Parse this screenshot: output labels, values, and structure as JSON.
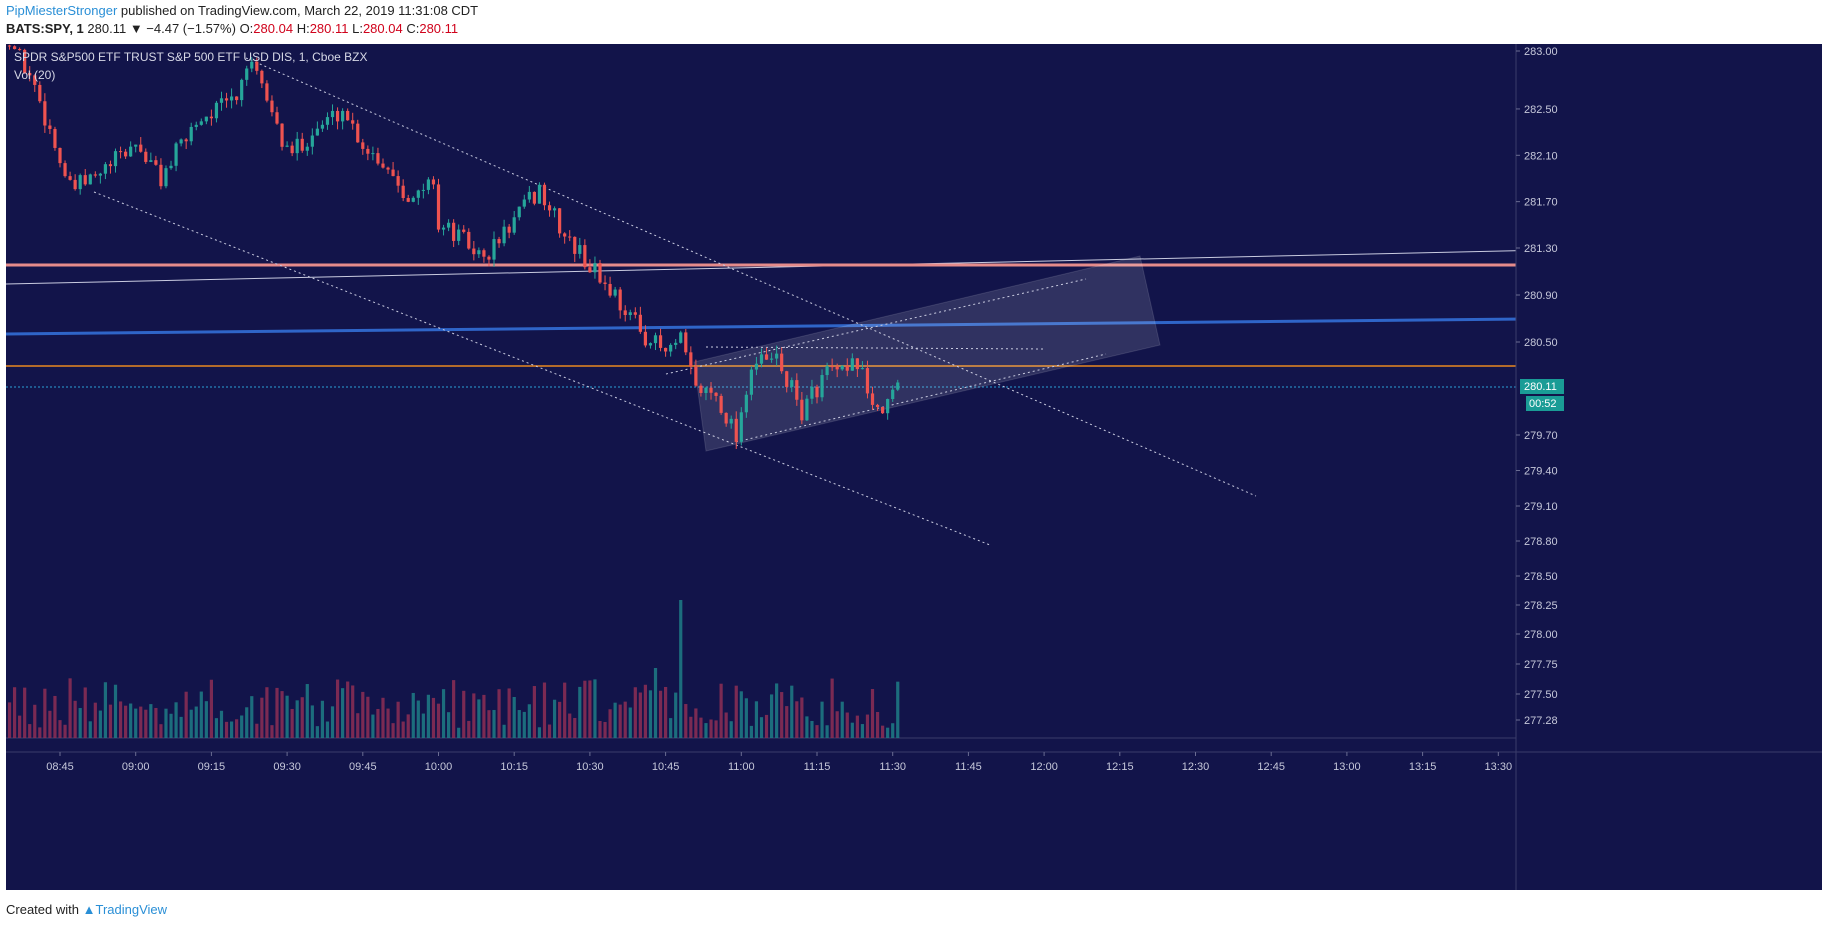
{
  "header": {
    "username": "PipMiesterStronger",
    "published_text": " published on TradingView.com, March 22, 2019 11:31:08 CDT",
    "symbol": "BATS:SPY, 1",
    "price": "280.11",
    "change": "▼ −4.47 (−1.57%)",
    "ohlc": [
      {
        "label": "O:",
        "value": "280.04"
      },
      {
        "label": "H:",
        "value": "280.11"
      },
      {
        "label": "L:",
        "value": "280.04"
      },
      {
        "label": "C:",
        "value": "280.11"
      }
    ]
  },
  "legend": {
    "title": "SPDR S&P500 ETF TRUST S&P 500 ETF USD DIS, 1, Cboe BZX",
    "volume": "Vol (20)"
  },
  "footer": {
    "created_with": "Created with",
    "brand": "TradingView"
  },
  "colors": {
    "background": "#12144a",
    "up": "#26a69a",
    "down": "#ef5350",
    "up_volume": "#1f7c86",
    "down_volume": "#8e2e55",
    "resistance": "#e58b8b",
    "blue_line": "#2f65c8",
    "orange_line": "#b36b2a",
    "last_price": "#1a9c96"
  },
  "chart_data": {
    "type": "candlestick",
    "timeframe": "1 minute",
    "y_ticks": [
      "283.00",
      "282.50",
      "282.10",
      "281.70",
      "281.30",
      "280.90",
      "280.50",
      "279.70",
      "279.40",
      "279.10",
      "278.80",
      "278.50",
      "278.25",
      "278.00",
      "277.75",
      "277.50",
      "277.28"
    ],
    "x_ticks": [
      "08:45",
      "09:00",
      "09:15",
      "09:30",
      "09:45",
      "10:00",
      "10:15",
      "10:30",
      "10:45",
      "11:00",
      "11:15",
      "11:30",
      "11:45",
      "12:00",
      "12:15",
      "12:30",
      "12:45",
      "13:00",
      "13:15",
      "13:30"
    ],
    "x_start": "08:34",
    "x_end": "13:34",
    "last_price_label": "280.11",
    "countdown_label": "00:52",
    "anchors": [
      {
        "time": "08:34",
        "close": 283.2
      },
      {
        "time": "08:40",
        "close": 282.7
      },
      {
        "time": "08:47",
        "close": 281.8
      },
      {
        "time": "08:52",
        "close": 281.9
      },
      {
        "time": "09:00",
        "close": 282.2
      },
      {
        "time": "09:05",
        "close": 281.9
      },
      {
        "time": "09:12",
        "close": 282.4
      },
      {
        "time": "09:20",
        "close": 282.6
      },
      {
        "time": "09:22",
        "close": 282.9
      },
      {
        "time": "09:26",
        "close": 282.6
      },
      {
        "time": "09:30",
        "close": 282.1
      },
      {
        "time": "09:35",
        "close": 282.3
      },
      {
        "time": "09:41",
        "close": 282.5
      },
      {
        "time": "09:45",
        "close": 282.2
      },
      {
        "time": "09:50",
        "close": 282.0
      },
      {
        "time": "09:55",
        "close": 281.7
      },
      {
        "time": "09:59",
        "close": 281.9
      },
      {
        "time": "10:00",
        "close": 281.5
      },
      {
        "time": "10:04",
        "close": 281.4
      },
      {
        "time": "10:09",
        "close": 281.2
      },
      {
        "time": "10:16",
        "close": 281.6
      },
      {
        "time": "10:20",
        "close": 281.8
      },
      {
        "time": "10:25",
        "close": 281.4
      },
      {
        "time": "10:31",
        "close": 281.1
      },
      {
        "time": "10:35",
        "close": 280.9
      },
      {
        "time": "10:40",
        "close": 280.6
      },
      {
        "time": "10:45",
        "close": 280.4
      },
      {
        "time": "10:48",
        "close": 280.5
      },
      {
        "time": "10:51",
        "close": 280.1
      },
      {
        "time": "10:55",
        "close": 280.05
      },
      {
        "time": "10:59",
        "close": 279.7
      },
      {
        "time": "11:02",
        "close": 280.3
      },
      {
        "time": "11:07",
        "close": 280.35
      },
      {
        "time": "11:12",
        "close": 279.9
      },
      {
        "time": "11:17",
        "close": 280.25
      },
      {
        "time": "11:21",
        "close": 280.2
      },
      {
        "time": "11:23",
        "close": 280.35
      },
      {
        "time": "11:27",
        "close": 279.85
      },
      {
        "time": "11:31",
        "close": 280.11
      }
    ],
    "horizontal_levels": [
      {
        "name": "resistance",
        "price": 281.18
      },
      {
        "name": "support",
        "price": 280.28
      }
    ],
    "last_price": 280.11
  }
}
